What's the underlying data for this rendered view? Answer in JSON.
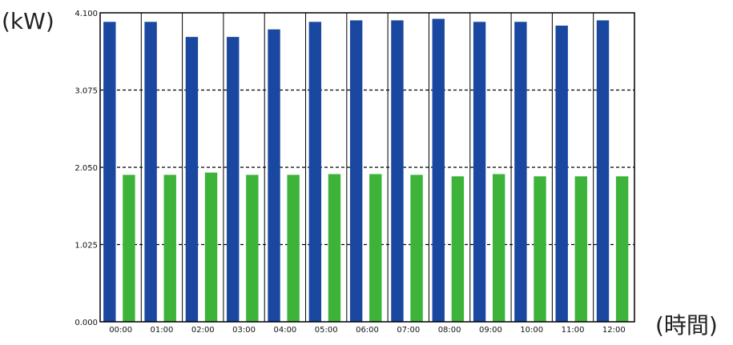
{
  "chart_data": {
    "type": "bar",
    "ylabel": "(kW)",
    "xlabel": "(時間)",
    "ylim": [
      0,
      4.1
    ],
    "yticks": [
      "0.000",
      "1.025",
      "2.050",
      "3.075",
      "4.100"
    ],
    "ytick_values": [
      0,
      1.025,
      2.05,
      3.075,
      4.1
    ],
    "grid": true,
    "categories": [
      "00:00",
      "01:00",
      "02:00",
      "03:00",
      "04:00",
      "05:00",
      "06:00",
      "07:00",
      "08:00",
      "09:00",
      "10:00",
      "11:00",
      "12:00"
    ],
    "series": [
      {
        "color": "#1a47a0",
        "values": [
          3.98,
          3.98,
          3.78,
          3.78,
          3.88,
          3.98,
          4.0,
          4.0,
          4.02,
          3.98,
          3.98,
          3.93,
          4.0
        ]
      },
      {
        "color": "#3db33a",
        "values": [
          1.95,
          1.95,
          1.98,
          1.95,
          1.95,
          1.96,
          1.96,
          1.95,
          1.93,
          1.96,
          1.93,
          1.93,
          1.93
        ]
      }
    ]
  }
}
